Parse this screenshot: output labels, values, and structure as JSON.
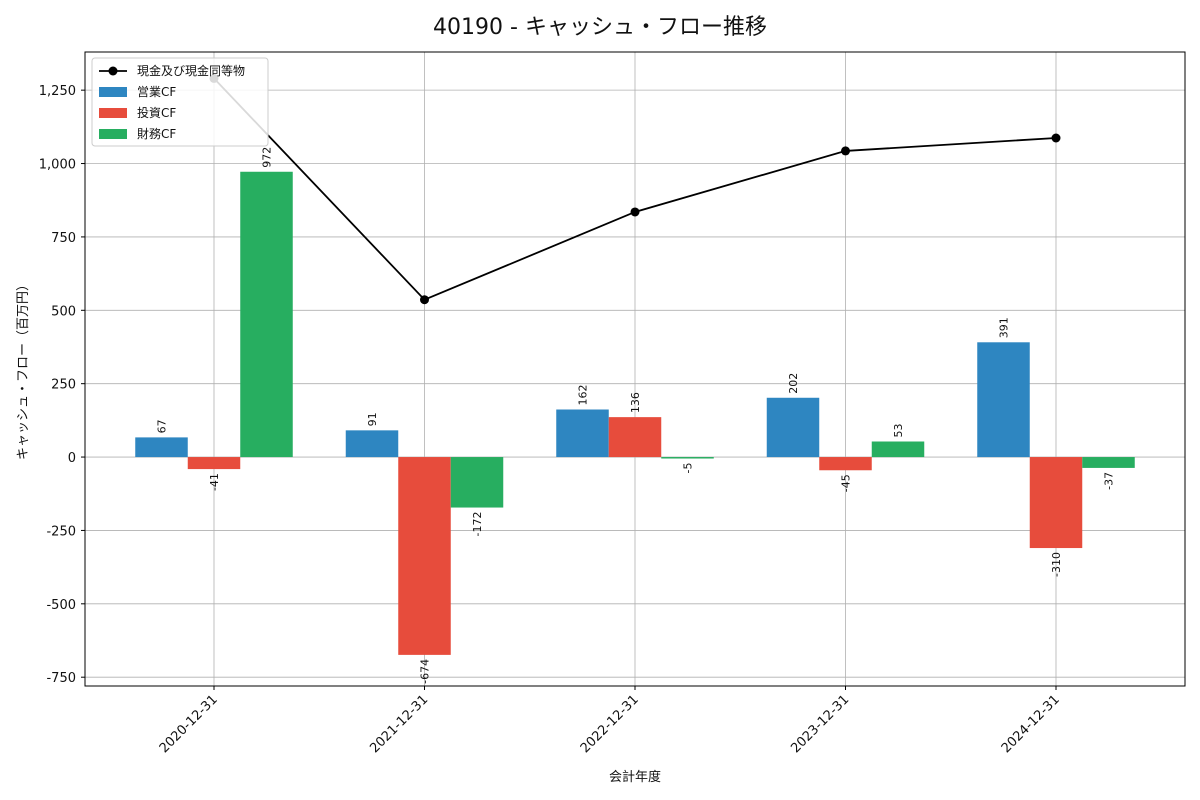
{
  "chart_data": {
    "type": "bar",
    "title": "40190 - キャッシュ・フロー推移",
    "xlabel": "会計年度",
    "ylabel": "キャッシュ・フロー（百万円）",
    "categories": [
      "2020-12-31",
      "2021-12-31",
      "2022-12-31",
      "2023-12-31",
      "2024-12-31"
    ],
    "ylim": [
      -780,
      1380
    ],
    "yticks": [
      -750,
      -500,
      -250,
      0,
      250,
      500,
      750,
      1000,
      1250
    ],
    "ytick_labels": [
      "-750",
      "-500",
      "-250",
      "0",
      "250",
      "500",
      "750",
      "1,000",
      "1,250"
    ],
    "grid": true,
    "legend_position": "top-left",
    "series": [
      {
        "name": "営業CF",
        "kind": "bar",
        "color": "#2e86c1",
        "values": [
          67,
          91,
          162,
          202,
          391
        ],
        "labels": [
          "67",
          "91",
          "162",
          "202",
          "391"
        ]
      },
      {
        "name": "投資CF",
        "kind": "bar",
        "color": "#e74c3c",
        "values": [
          -41,
          -674,
          136,
          -45,
          -310
        ],
        "labels": [
          "-41",
          "-674",
          "136",
          "-45",
          "-310"
        ]
      },
      {
        "name": "財務CF",
        "kind": "bar",
        "color": "#27ae60",
        "values": [
          972,
          -172,
          -5,
          53,
          -37
        ],
        "labels": [
          "972",
          "-172",
          "-5",
          "53",
          "-37"
        ]
      }
    ],
    "line": {
      "name": "現金及び現金同等物",
      "kind": "line",
      "color": "#000000",
      "values": [
        1290,
        536,
        835,
        1043,
        1087
      ]
    }
  }
}
